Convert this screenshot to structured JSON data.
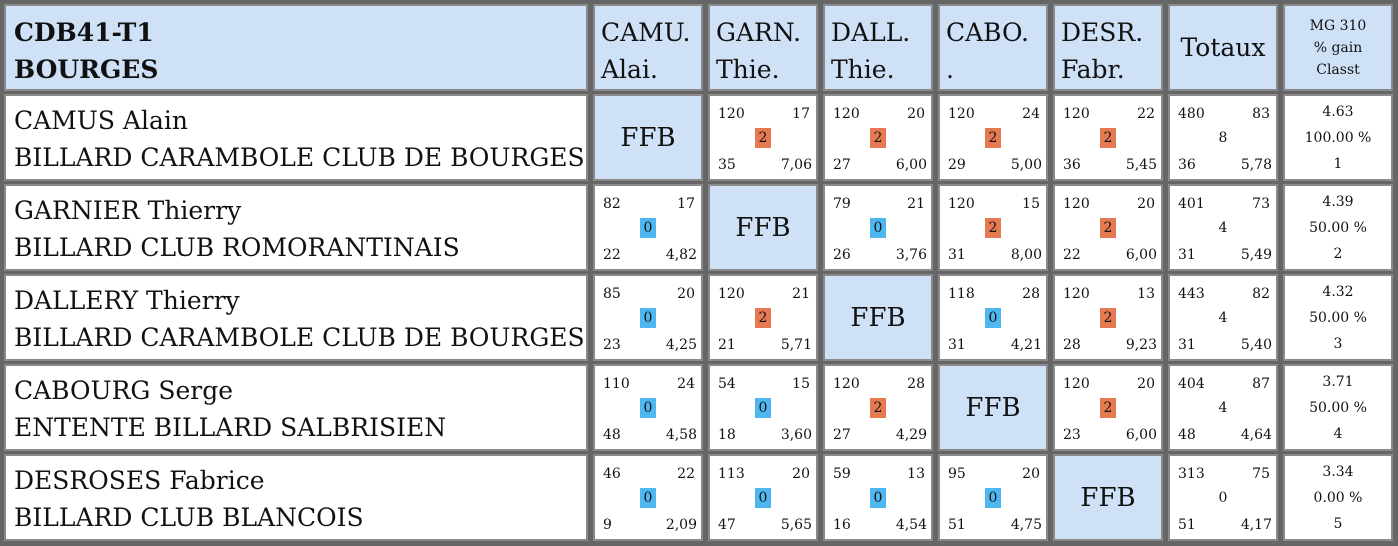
{
  "header": {
    "title_line1": "CDB41-T1",
    "title_line2": "BOURGES",
    "columns": [
      {
        "l1": "CAMU.",
        "l2": "Alai."
      },
      {
        "l1": "GARN.",
        "l2": "Thie."
      },
      {
        "l1": "DALL.",
        "l2": "Thie."
      },
      {
        "l1": "CABO.",
        "l2": "."
      },
      {
        "l1": "DESR.",
        "l2": "Fabr."
      }
    ],
    "totals_label": "Totaux",
    "mg_line1": "MG 310",
    "mg_line2": "% gain",
    "mg_line3": "Classt"
  },
  "ffb_label": "FFB",
  "colors": {
    "header_bg": "#cfe1f7",
    "win": "#e57a52",
    "loss": "#4fb7ef"
  },
  "rows": [
    {
      "name": "CAMUS Alain",
      "club": "BILLARD CARAMBOLE CLUB DE BOURGES",
      "cells": [
        null,
        {
          "pts": "120",
          "hs": "17",
          "mp": "2",
          "rep": "35",
          "moy": "7,06",
          "result": "win"
        },
        {
          "pts": "120",
          "hs": "20",
          "mp": "2",
          "rep": "27",
          "moy": "6,00",
          "result": "win"
        },
        {
          "pts": "120",
          "hs": "24",
          "mp": "2",
          "rep": "29",
          "moy": "5,00",
          "result": "win"
        },
        {
          "pts": "120",
          "hs": "22",
          "mp": "2",
          "rep": "36",
          "moy": "5,45",
          "result": "win"
        }
      ],
      "totals": {
        "pts": "480",
        "hs": "83",
        "mp": "8",
        "rep": "36",
        "moy": "5,78"
      },
      "stats": {
        "mg": "4.63",
        "pct": "100.00 %",
        "rank": "1"
      }
    },
    {
      "name": "GARNIER Thierry",
      "club": "BILLARD CLUB ROMORANTINAIS",
      "cells": [
        {
          "pts": "82",
          "hs": "17",
          "mp": "0",
          "rep": "22",
          "moy": "4,82",
          "result": "loss"
        },
        null,
        {
          "pts": "79",
          "hs": "21",
          "mp": "0",
          "rep": "26",
          "moy": "3,76",
          "result": "loss"
        },
        {
          "pts": "120",
          "hs": "15",
          "mp": "2",
          "rep": "31",
          "moy": "8,00",
          "result": "win"
        },
        {
          "pts": "120",
          "hs": "20",
          "mp": "2",
          "rep": "22",
          "moy": "6,00",
          "result": "win"
        }
      ],
      "totals": {
        "pts": "401",
        "hs": "73",
        "mp": "4",
        "rep": "31",
        "moy": "5,49"
      },
      "stats": {
        "mg": "4.39",
        "pct": "50.00 %",
        "rank": "2"
      }
    },
    {
      "name": "DALLERY Thierry",
      "club": "BILLARD CARAMBOLE CLUB DE BOURGES",
      "cells": [
        {
          "pts": "85",
          "hs": "20",
          "mp": "0",
          "rep": "23",
          "moy": "4,25",
          "result": "loss"
        },
        {
          "pts": "120",
          "hs": "21",
          "mp": "2",
          "rep": "21",
          "moy": "5,71",
          "result": "win"
        },
        null,
        {
          "pts": "118",
          "hs": "28",
          "mp": "0",
          "rep": "31",
          "moy": "4,21",
          "result": "loss"
        },
        {
          "pts": "120",
          "hs": "13",
          "mp": "2",
          "rep": "28",
          "moy": "9,23",
          "result": "win"
        }
      ],
      "totals": {
        "pts": "443",
        "hs": "82",
        "mp": "4",
        "rep": "31",
        "moy": "5,40"
      },
      "stats": {
        "mg": "4.32",
        "pct": "50.00 %",
        "rank": "3"
      }
    },
    {
      "name": "CABOURG Serge",
      "club": "ENTENTE BILLARD SALBRISIEN",
      "cells": [
        {
          "pts": "110",
          "hs": "24",
          "mp": "0",
          "rep": "48",
          "moy": "4,58",
          "result": "loss"
        },
        {
          "pts": "54",
          "hs": "15",
          "mp": "0",
          "rep": "18",
          "moy": "3,60",
          "result": "loss"
        },
        {
          "pts": "120",
          "hs": "28",
          "mp": "2",
          "rep": "27",
          "moy": "4,29",
          "result": "win"
        },
        null,
        {
          "pts": "120",
          "hs": "20",
          "mp": "2",
          "rep": "23",
          "moy": "6,00",
          "result": "win"
        }
      ],
      "totals": {
        "pts": "404",
        "hs": "87",
        "mp": "4",
        "rep": "48",
        "moy": "4,64"
      },
      "stats": {
        "mg": "3.71",
        "pct": "50.00 %",
        "rank": "4"
      }
    },
    {
      "name": "DESROSES Fabrice",
      "club": "BILLARD CLUB BLANCOIS",
      "cells": [
        {
          "pts": "46",
          "hs": "22",
          "mp": "0",
          "rep": "9",
          "moy": "2,09",
          "result": "loss"
        },
        {
          "pts": "113",
          "hs": "20",
          "mp": "0",
          "rep": "47",
          "moy": "5,65",
          "result": "loss"
        },
        {
          "pts": "59",
          "hs": "13",
          "mp": "0",
          "rep": "16",
          "moy": "4,54",
          "result": "loss"
        },
        {
          "pts": "95",
          "hs": "20",
          "mp": "0",
          "rep": "51",
          "moy": "4,75",
          "result": "loss"
        },
        null
      ],
      "totals": {
        "pts": "313",
        "hs": "75",
        "mp": "0",
        "rep": "51",
        "moy": "4,17"
      },
      "stats": {
        "mg": "3.34",
        "pct": "0.00 %",
        "rank": "5"
      }
    }
  ]
}
